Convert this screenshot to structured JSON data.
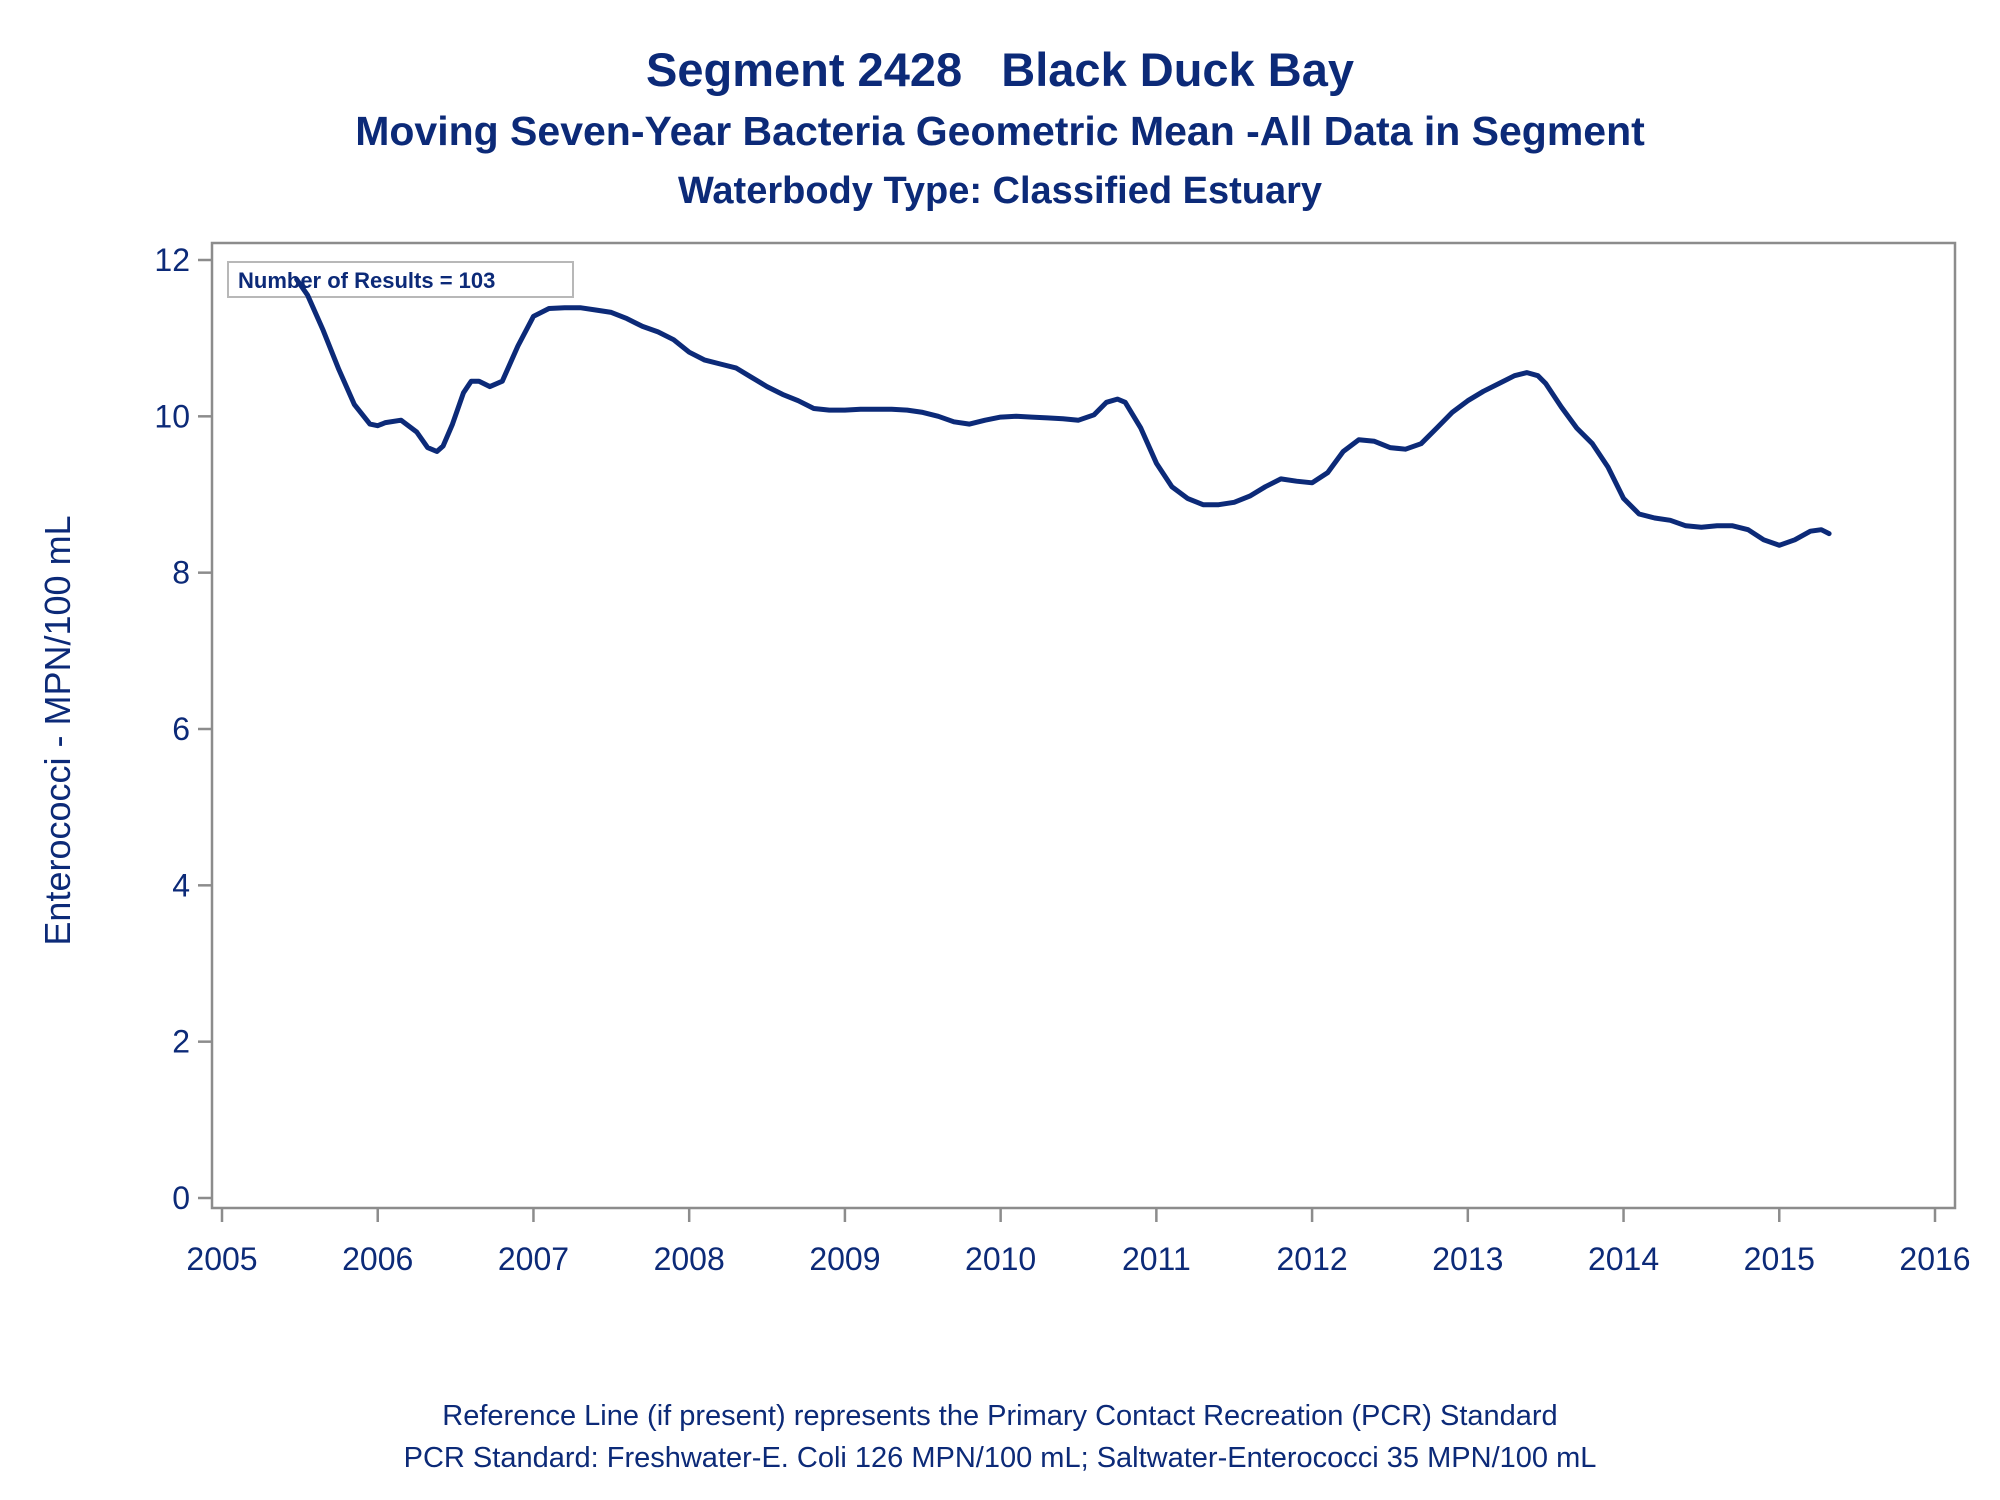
{
  "header": {
    "title": "Segment 2428   Black Duck Bay",
    "subtitle": "Moving Seven-Year Bacteria Geometric Mean -All Data in Segment",
    "subtitle2": "Waterbody Type: Classified Estuary"
  },
  "footer": {
    "line1": "Reference Line (if present) represents the Primary Contact Recreation (PCR) Standard",
    "line2": "PCR Standard: Freshwater-E. Coli 126 MPN/100 mL; Saltwater-Enterococci 35 MPN/100 mL"
  },
  "colors": {
    "line": "#0c2a78",
    "text": "#0c2a78",
    "frame": "#8c8c8c"
  },
  "chart_data": {
    "type": "line",
    "title": "Segment 2428   Black Duck Bay",
    "xlabel": "",
    "ylabel": "Enterococci - MPN/100 mL",
    "xlim": [
      2005,
      2016
    ],
    "ylim": [
      0,
      12
    ],
    "xticks": [
      2005,
      2006,
      2007,
      2008,
      2009,
      2010,
      2011,
      2012,
      2013,
      2014,
      2015,
      2016
    ],
    "yticks": [
      0,
      2,
      4,
      6,
      8,
      10,
      12
    ],
    "grid": false,
    "legend": "none",
    "inset_label": "Number of Results = 103",
    "series": [
      {
        "x": [
          2005.48,
          2005.55,
          2005.65,
          2005.75,
          2005.85,
          2005.95,
          2006.0,
          2006.05,
          2006.15,
          2006.25,
          2006.32,
          2006.38,
          2006.42,
          2006.48,
          2006.55,
          2006.6,
          2006.65,
          2006.72,
          2006.8,
          2006.9,
          2007.0,
          2007.1,
          2007.2,
          2007.3,
          2007.4,
          2007.5,
          2007.6,
          2007.7,
          2007.8,
          2007.9,
          2008.0,
          2008.1,
          2008.2,
          2008.3,
          2008.4,
          2008.5,
          2008.6,
          2008.7,
          2008.8,
          2008.9,
          2009.0,
          2009.1,
          2009.2,
          2009.3,
          2009.4,
          2009.5,
          2009.6,
          2009.7,
          2009.8,
          2009.9,
          2010.0,
          2010.1,
          2010.2,
          2010.3,
          2010.4,
          2010.5,
          2010.6,
          2010.68,
          2010.75,
          2010.8,
          2010.9,
          2011.0,
          2011.1,
          2011.2,
          2011.3,
          2011.4,
          2011.5,
          2011.6,
          2011.7,
          2011.8,
          2011.9,
          2012.0,
          2012.1,
          2012.2,
          2012.3,
          2012.4,
          2012.5,
          2012.6,
          2012.7,
          2012.8,
          2012.9,
          2013.0,
          2013.1,
          2013.2,
          2013.3,
          2013.38,
          2013.45,
          2013.5,
          2013.6,
          2013.7,
          2013.8,
          2013.9,
          2014.0,
          2014.1,
          2014.2,
          2014.3,
          2014.4,
          2014.5,
          2014.6,
          2014.7,
          2014.8,
          2014.9,
          2015.0,
          2015.1,
          2015.2,
          2015.27,
          2015.32
        ],
        "y": [
          11.75,
          11.55,
          11.1,
          10.6,
          10.15,
          9.9,
          9.88,
          9.92,
          9.95,
          9.8,
          9.6,
          9.55,
          9.62,
          9.9,
          10.3,
          10.45,
          10.45,
          10.38,
          10.45,
          10.9,
          11.28,
          11.38,
          11.39,
          11.39,
          11.36,
          11.33,
          11.25,
          11.15,
          11.08,
          10.98,
          10.82,
          10.72,
          10.67,
          10.62,
          10.5,
          10.38,
          10.28,
          10.2,
          10.1,
          10.08,
          10.08,
          10.09,
          10.09,
          10.09,
          10.08,
          10.05,
          10.0,
          9.93,
          9.9,
          9.95,
          9.99,
          10.0,
          9.99,
          9.98,
          9.97,
          9.95,
          10.02,
          10.18,
          10.22,
          10.18,
          9.85,
          9.4,
          9.1,
          8.95,
          8.87,
          8.87,
          8.9,
          8.98,
          9.1,
          9.2,
          9.17,
          9.15,
          9.28,
          9.55,
          9.7,
          9.68,
          9.6,
          9.58,
          9.65,
          9.85,
          10.05,
          10.2,
          10.32,
          10.42,
          10.52,
          10.56,
          10.52,
          10.42,
          10.12,
          9.85,
          9.65,
          9.35,
          8.95,
          8.75,
          8.7,
          8.67,
          8.6,
          8.58,
          8.6,
          8.6,
          8.55,
          8.42,
          8.35,
          8.42,
          8.53,
          8.55,
          8.5
        ]
      }
    ]
  }
}
